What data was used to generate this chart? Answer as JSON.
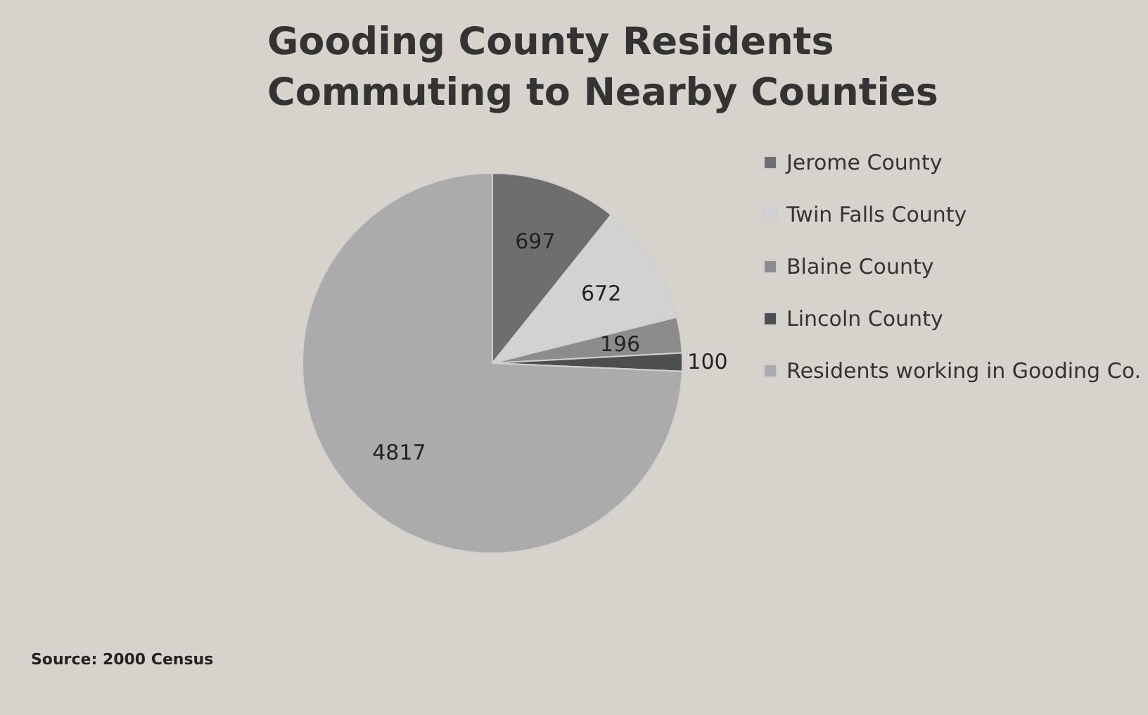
{
  "chart_data": {
    "type": "pie",
    "title": "Gooding County Residents\nCommuting to Nearby  Counties",
    "categories": [
      "Jerome County",
      "Twin Falls County",
      "Blaine County",
      "Lincoln County",
      "Residents working in Gooding Co."
    ],
    "values": [
      697,
      672,
      196,
      100,
      4817
    ],
    "colors": [
      "#6e6e6e",
      "#d2d2d2",
      "#8c8c8c",
      "#4e4e4e",
      "#ababab"
    ],
    "data_labels": true,
    "legend": "right",
    "annotations": [
      "Source: 2000 Census"
    ]
  }
}
